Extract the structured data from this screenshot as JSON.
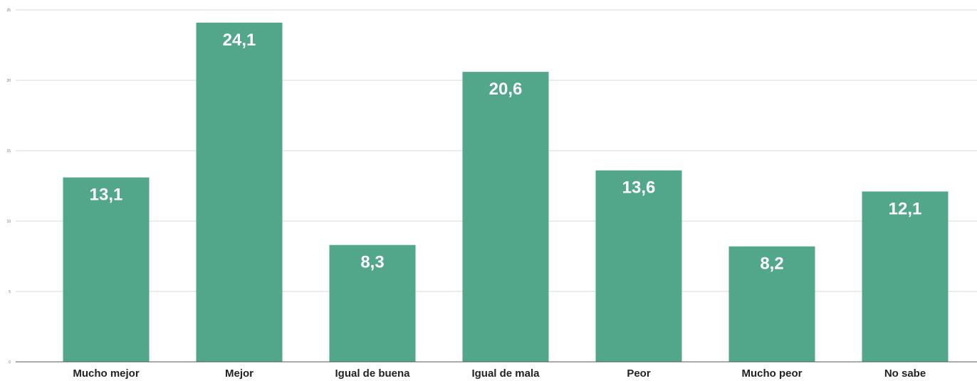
{
  "chart_data": {
    "type": "bar",
    "categories": [
      "Mucho mejor",
      "Mejor",
      "Igual de buena",
      "Igual de mala",
      "Peor",
      "Mucho peor",
      "No sabe"
    ],
    "values": [
      13.1,
      24.1,
      8.3,
      20.6,
      13.6,
      8.2,
      12.1
    ],
    "value_labels": [
      "13,1",
      "24,1",
      "8,3",
      "20,6",
      "13,6",
      "8,2",
      "12,1"
    ],
    "ylim": [
      0,
      25
    ],
    "yticks": [
      0,
      5,
      10,
      15,
      20,
      25
    ],
    "ytick_labels": [
      "0",
      "5",
      "10",
      "15",
      "20",
      "25"
    ],
    "grid": true,
    "legend": "none",
    "bar_color": "#52a68a"
  }
}
